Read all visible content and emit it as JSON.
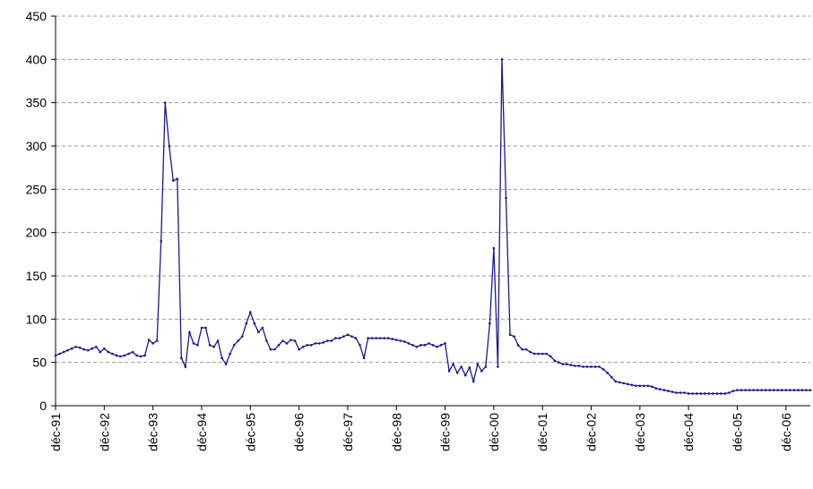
{
  "chart_data": {
    "type": "line",
    "color": "#1a1a8c",
    "grid": true,
    "ylim": [
      0,
      450
    ],
    "yticks": [
      0,
      50,
      100,
      150,
      200,
      250,
      300,
      350,
      400,
      450
    ],
    "categories": [
      "déc-91",
      null,
      null,
      null,
      null,
      null,
      null,
      null,
      null,
      null,
      null,
      null,
      "déc-92",
      null,
      null,
      null,
      null,
      null,
      null,
      null,
      null,
      null,
      null,
      null,
      "déc-93",
      null,
      null,
      null,
      null,
      null,
      null,
      null,
      null,
      null,
      null,
      null,
      "déc-94",
      null,
      null,
      null,
      null,
      null,
      null,
      null,
      null,
      null,
      null,
      null,
      "déc-95",
      null,
      null,
      null,
      null,
      null,
      null,
      null,
      null,
      null,
      null,
      null,
      "déc-96",
      null,
      null,
      null,
      null,
      null,
      null,
      null,
      null,
      null,
      null,
      null,
      "déc-97",
      null,
      null,
      null,
      null,
      null,
      null,
      null,
      null,
      null,
      null,
      null,
      "déc-98",
      null,
      null,
      null,
      null,
      null,
      null,
      null,
      null,
      null,
      null,
      null,
      "déc-99",
      null,
      null,
      null,
      null,
      null,
      null,
      null,
      null,
      null,
      null,
      null,
      "déc-00",
      null,
      null,
      null,
      null,
      null,
      null,
      null,
      null,
      null,
      null,
      null,
      "déc-01",
      null,
      null,
      null,
      null,
      null,
      null,
      null,
      null,
      null,
      null,
      null,
      "déc-02",
      null,
      null,
      null,
      null,
      null,
      null,
      null,
      null,
      null,
      null,
      null,
      "déc-03",
      null,
      null,
      null,
      null,
      null,
      null,
      null,
      null,
      null,
      null,
      null,
      "déc-04",
      null,
      null,
      null,
      null,
      null,
      null,
      null,
      null,
      null,
      null,
      null,
      "déc-05",
      null,
      null,
      null,
      null,
      null,
      null,
      null,
      null,
      null,
      null,
      null,
      "déc-06",
      null,
      null,
      null,
      null,
      null,
      null
    ],
    "values": [
      58,
      60,
      62,
      64,
      66,
      68,
      67,
      65,
      64,
      66,
      68,
      62,
      66,
      62,
      60,
      58,
      57,
      58,
      60,
      62,
      58,
      57,
      58,
      76,
      72,
      75,
      190,
      350,
      300,
      260,
      262,
      55,
      45,
      85,
      72,
      70,
      90,
      90,
      70,
      68,
      75,
      55,
      48,
      60,
      70,
      75,
      80,
      95,
      108,
      95,
      85,
      90,
      75,
      65,
      65,
      70,
      75,
      72,
      76,
      75,
      65,
      68,
      70,
      70,
      72,
      72,
      73,
      75,
      75,
      78,
      78,
      80,
      82,
      80,
      78,
      70,
      55,
      78,
      78,
      78,
      78,
      78,
      78,
      77,
      76,
      75,
      74,
      72,
      70,
      68,
      70,
      70,
      72,
      70,
      68,
      70,
      72,
      40,
      48,
      38,
      45,
      35,
      44,
      28,
      48,
      40,
      45,
      95,
      182,
      45,
      400,
      240,
      82,
      80,
      70,
      65,
      65,
      62,
      60,
      60,
      60,
      60,
      57,
      52,
      50,
      48,
      48,
      47,
      46,
      46,
      45,
      45,
      45,
      45,
      45,
      42,
      38,
      33,
      28,
      27,
      26,
      25,
      24,
      23,
      23,
      23,
      23,
      22,
      20,
      19,
      18,
      17,
      16,
      15,
      15,
      15,
      14,
      14,
      14,
      14,
      14,
      14,
      14,
      14,
      14,
      14,
      15,
      17,
      18,
      18,
      18,
      18,
      18,
      18,
      18,
      18,
      18,
      18,
      18,
      18,
      18,
      18,
      18,
      18,
      18,
      18,
      18
    ]
  }
}
